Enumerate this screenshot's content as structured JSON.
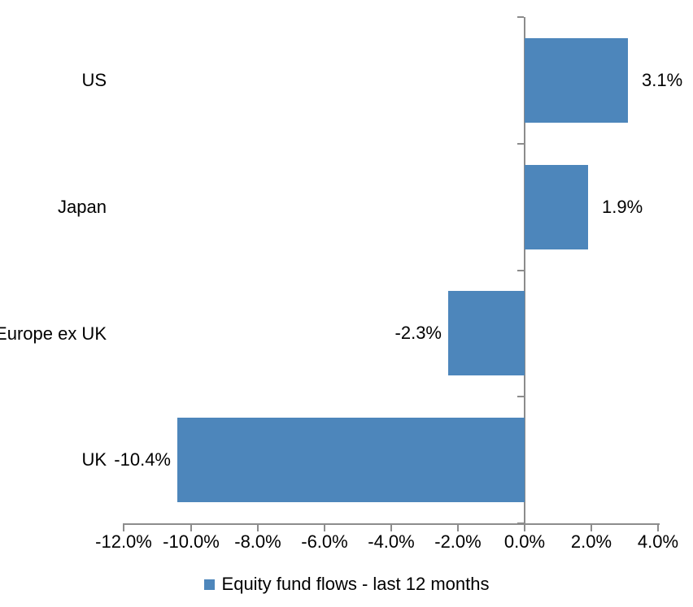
{
  "chart_data": {
    "type": "bar",
    "orientation": "horizontal",
    "title": "",
    "categories": [
      "US",
      "Japan",
      "Europe ex UK",
      "UK"
    ],
    "values": [
      3.1,
      1.9,
      -2.3,
      -10.4
    ],
    "data_labels": [
      "3.1%",
      "1.9%",
      "-2.3%",
      "-10.4%"
    ],
    "series": [
      {
        "name": "Equity fund flows - last 12 months",
        "values": [
          3.1,
          1.9,
          -2.3,
          -10.4
        ]
      }
    ],
    "xlabel": "",
    "ylabel": "",
    "xlim": [
      -12,
      4
    ],
    "x_tick_values": [
      -12,
      -10,
      -8,
      -6,
      -4,
      -2,
      0,
      2,
      4
    ],
    "x_tick_labels": [
      "-12.0%",
      "-10.0%",
      "-8.0%",
      "-6.0%",
      "-4.0%",
      "-2.0%",
      "0.0%",
      "2.0%",
      "4.0%"
    ],
    "grid": false,
    "legend_position": "bottom",
    "bar_color": "#4D86BB",
    "axis_color": "#8C8C8C",
    "text_color": "#000000"
  },
  "legend": {
    "label": "Equity fund flows - last 12 months",
    "swatch_color": "#4D86BB"
  }
}
